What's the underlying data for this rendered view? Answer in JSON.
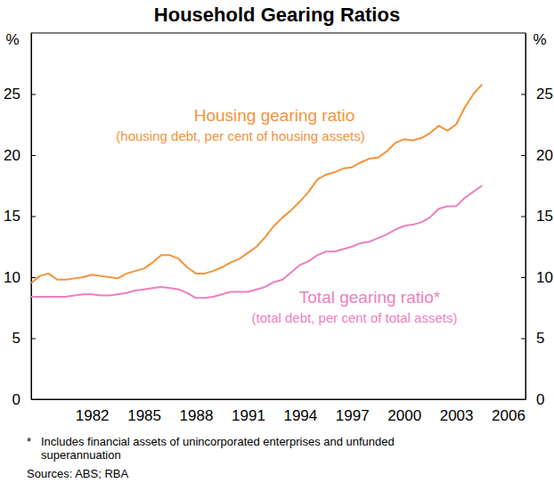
{
  "chart_data": {
    "type": "line",
    "title": "Household Gearing Ratios",
    "ylabel": "%",
    "x": [
      1979.0,
      1979.5,
      1980.0,
      1980.5,
      1981.0,
      1981.5,
      1982.0,
      1982.5,
      1983.0,
      1983.5,
      1984.0,
      1984.5,
      1985.0,
      1985.5,
      1986.0,
      1986.5,
      1987.0,
      1987.5,
      1988.0,
      1988.5,
      1989.0,
      1989.5,
      1990.0,
      1990.5,
      1991.0,
      1991.5,
      1992.0,
      1992.5,
      1993.0,
      1993.5,
      1994.0,
      1994.5,
      1995.0,
      1995.5,
      1996.0,
      1996.5,
      1997.0,
      1997.5,
      1998.0,
      1998.5,
      1999.0,
      1999.5,
      2000.0,
      2000.5,
      2001.0,
      2001.5,
      2002.0,
      2002.5,
      2003.0,
      2003.5,
      2004.0,
      2004.5,
      2005.0
    ],
    "series": [
      {
        "name": "Housing gearing ratio",
        "color": "#f5933a",
        "values": [
          9.5,
          10.1,
          10.3,
          9.8,
          9.8,
          9.9,
          10.0,
          10.2,
          10.1,
          10.0,
          9.9,
          10.3,
          10.5,
          10.7,
          11.2,
          11.8,
          11.8,
          11.5,
          10.8,
          10.3,
          10.3,
          10.5,
          10.8,
          11.2,
          11.5,
          12.0,
          12.5,
          13.3,
          14.2,
          14.9,
          15.5,
          16.2,
          17.0,
          18.0,
          18.4,
          18.6,
          18.9,
          19.0,
          19.4,
          19.7,
          19.8,
          20.3,
          21.0,
          21.3,
          21.2,
          21.4,
          21.8,
          22.4,
          22.0,
          22.5,
          23.9,
          25.0,
          25.8
        ]
      },
      {
        "name": "Total gearing ratio*",
        "color": "#ee7fbd",
        "values": [
          8.4,
          8.4,
          8.4,
          8.4,
          8.4,
          8.5,
          8.6,
          8.6,
          8.5,
          8.5,
          8.6,
          8.7,
          8.9,
          9.0,
          9.1,
          9.2,
          9.1,
          9.0,
          8.7,
          8.3,
          8.3,
          8.4,
          8.6,
          8.8,
          8.8,
          8.8,
          9.0,
          9.2,
          9.6,
          9.8,
          10.4,
          11.0,
          11.3,
          11.8,
          12.1,
          12.1,
          12.3,
          12.5,
          12.8,
          12.9,
          13.2,
          13.5,
          13.9,
          14.2,
          14.3,
          14.5,
          14.9,
          15.6,
          15.8,
          15.8,
          16.5,
          17.0,
          17.5
        ]
      }
    ],
    "annotations": [
      "(housing debt, per cent of housing assets)",
      "(total debt, per cent of total assets)"
    ],
    "footnote_marker": "*",
    "footnote": [
      "Includes financial assets of unincorporated enterprises and unfunded",
      "superannuation"
    ],
    "source": "Sources: ABS; RBA",
    "xlim": [
      1979,
      2007.5
    ],
    "xticks": [
      {
        "value": 1982.5,
        "label": "1982"
      },
      {
        "value": 1985.5,
        "label": "1985"
      },
      {
        "value": 1988.5,
        "label": "1988"
      },
      {
        "value": 1991.5,
        "label": "1991"
      },
      {
        "value": 1994.5,
        "label": "1994"
      },
      {
        "value": 1997.5,
        "label": "1997"
      },
      {
        "value": 2000.5,
        "label": "2000"
      },
      {
        "value": 2003.5,
        "label": "2003"
      },
      {
        "value": 2006.5,
        "label": "2006"
      }
    ],
    "ylim": [
      0,
      30
    ],
    "yticks": [
      0,
      5,
      10,
      15,
      20,
      25
    ],
    "grid": false
  }
}
